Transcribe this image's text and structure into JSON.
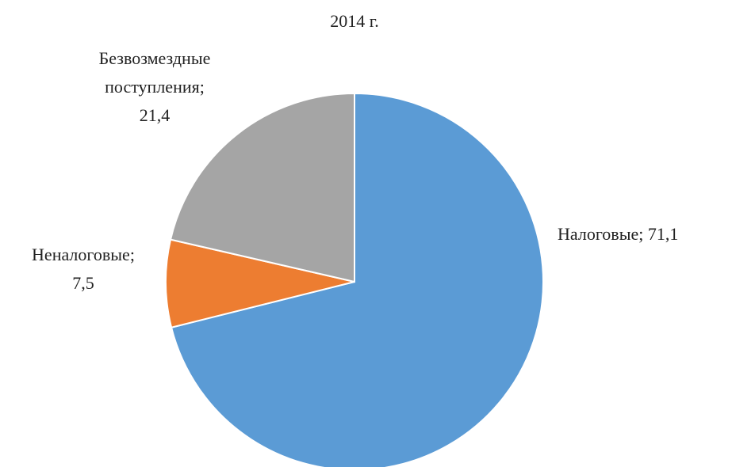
{
  "chart_data": {
    "type": "pie",
    "title": "2014 г.",
    "categories": [
      "Налоговые;",
      "Неналоговые;",
      "Безвозмездные поступления;"
    ],
    "values": [
      71.1,
      7.5,
      21.4
    ],
    "value_labels": [
      "71,1",
      "7,5",
      "21,4"
    ],
    "colors": [
      "#5b9bd5",
      "#ed7d31",
      "#a5a5a5"
    ]
  }
}
